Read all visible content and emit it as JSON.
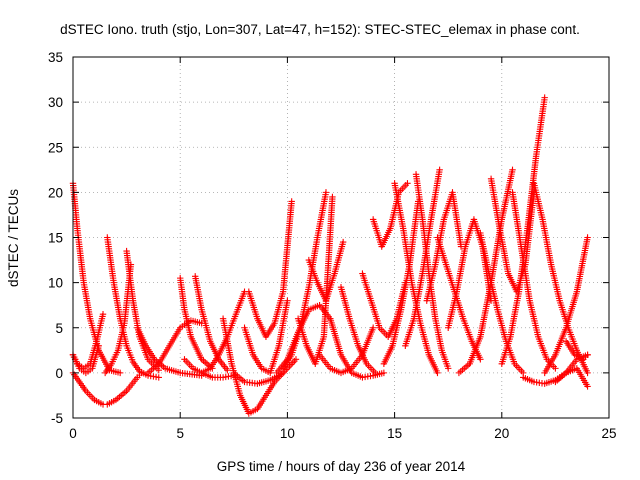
{
  "chart_data": {
    "type": "scatter",
    "title": "dSTEC Iono. truth (stjo, Lon=307, Lat=47, h=152): STEC-STEC_elemax in phase cont.",
    "xlabel": "GPS time / hours of day 236 of year 2014",
    "ylabel": "dSTEC  / TECUs",
    "xlim": [
      0,
      25
    ],
    "ylim": [
      -5,
      35
    ],
    "xticks": [
      0,
      5,
      10,
      15,
      20,
      25
    ],
    "yticks": [
      -5,
      0,
      5,
      10,
      15,
      20,
      25,
      30,
      35
    ],
    "grid": true,
    "marker": "+",
    "colors": {
      "series": "#ff0000",
      "grid": "#a0a0a0",
      "axes": "#000000"
    },
    "series": [
      {
        "x": [
          0.0,
          0.3,
          0.6,
          1.0,
          1.4,
          1.6,
          2.0,
          2.5,
          3.0,
          3.2
        ],
        "values": [
          0.0,
          -1.0,
          -2.0,
          -3.0,
          -3.5,
          -3.5,
          -3.0,
          -2.0,
          -0.5,
          0.0
        ]
      },
      {
        "x": [
          0.0,
          0.2,
          0.5,
          0.8,
          1.2,
          1.7,
          2.2
        ],
        "values": [
          21.0,
          16.0,
          10.0,
          6.0,
          2.5,
          0.3,
          0.0
        ]
      },
      {
        "x": [
          0.0,
          0.2,
          0.5,
          0.8,
          1.1,
          1.4
        ],
        "values": [
          2.0,
          1.0,
          0.5,
          1.0,
          3.5,
          6.5
        ]
      },
      {
        "x": [
          0.0,
          0.3,
          0.6,
          0.9,
          1.2
        ],
        "values": [
          2.0,
          0.5,
          0.0,
          0.5,
          3.0
        ]
      },
      {
        "x": [
          1.6,
          1.9,
          2.2,
          2.5,
          2.8,
          3.1,
          3.5,
          4.0
        ],
        "values": [
          15.0,
          10.0,
          6.0,
          3.0,
          1.2,
          0.2,
          -0.3,
          -0.5
        ]
      },
      {
        "x": [
          1.5,
          1.8,
          2.1,
          2.4,
          2.7
        ],
        "values": [
          0.0,
          1.0,
          2.5,
          5.5,
          12.0
        ]
      },
      {
        "x": [
          2.5,
          2.8,
          3.1,
          3.5,
          4.0
        ],
        "values": [
          13.5,
          8.0,
          4.0,
          1.5,
          0.3
        ]
      },
      {
        "x": [
          3.0,
          3.4,
          3.8,
          4.3,
          5.0,
          6.0
        ],
        "values": [
          5.0,
          3.0,
          1.5,
          0.5,
          0.0,
          -0.3
        ]
      },
      {
        "x": [
          3.5,
          4.0,
          4.5,
          5.0,
          5.5,
          6.0
        ],
        "values": [
          0.0,
          1.0,
          3.0,
          5.0,
          5.8,
          5.5
        ]
      },
      {
        "x": [
          5.0,
          5.2,
          5.5,
          6.0,
          6.5
        ],
        "values": [
          10.5,
          7.0,
          4.0,
          1.5,
          0.5
        ]
      },
      {
        "x": [
          5.2,
          5.6,
          6.0,
          6.5,
          7.0,
          7.5
        ],
        "values": [
          1.5,
          0.5,
          0.0,
          -0.5,
          -0.5,
          -0.3
        ]
      },
      {
        "x": [
          5.7,
          6.0,
          6.4,
          6.8,
          7.2
        ],
        "values": [
          10.7,
          7.0,
          3.5,
          1.5,
          0.3
        ]
      },
      {
        "x": [
          6.0,
          6.4,
          6.8,
          7.2,
          7.6,
          8.0
        ],
        "values": [
          0.0,
          0.5,
          2.0,
          4.0,
          6.5,
          9.0
        ]
      },
      {
        "x": [
          7.0,
          7.4,
          7.8,
          8.2,
          8.6,
          9.0,
          9.4,
          9.8
        ],
        "values": [
          6.0,
          1.0,
          -2.5,
          -4.5,
          -4.0,
          -2.5,
          -1.0,
          0.0
        ]
      },
      {
        "x": [
          8.0,
          8.4,
          8.8,
          9.2,
          9.6,
          10.0
        ],
        "values": [
          5.0,
          2.0,
          0.5,
          0.0,
          3.0,
          8.0
        ]
      },
      {
        "x": [
          8.2,
          8.6,
          9.0,
          9.4,
          9.8,
          10.2
        ],
        "values": [
          9.0,
          6.0,
          4.0,
          5.5,
          9.0,
          19.0
        ]
      },
      {
        "x": [
          7.5,
          8.0,
          8.6,
          9.2,
          9.8,
          10.4
        ],
        "values": [
          0.0,
          -1.0,
          -1.2,
          -0.8,
          0.0,
          1.5
        ]
      },
      {
        "x": [
          9.5,
          10.0,
          10.5,
          11.0,
          11.5,
          12.0
        ],
        "values": [
          0.0,
          1.5,
          4.5,
          7.0,
          7.5,
          6.0
        ]
      },
      {
        "x": [
          9.8,
          10.2,
          10.6,
          11.0,
          11.4,
          11.8
        ],
        "values": [
          0.5,
          2.0,
          5.0,
          9.5,
          15.0,
          20.0
        ]
      },
      {
        "x": [
          10.5,
          10.9,
          11.3,
          11.7,
          12.1
        ],
        "values": [
          6.0,
          3.0,
          1.0,
          4.0,
          19.5
        ]
      },
      {
        "x": [
          11.0,
          11.4,
          11.8,
          12.2,
          12.6
        ],
        "values": [
          12.5,
          10.0,
          8.0,
          11.0,
          14.5
        ]
      },
      {
        "x": [
          11.5,
          12.0,
          12.5,
          13.0,
          13.5,
          14.0
        ],
        "values": [
          2.0,
          0.5,
          0.0,
          0.5,
          2.0,
          5.0
        ]
      },
      {
        "x": [
          12.0,
          12.5,
          13.0,
          13.5,
          14.0,
          14.5
        ],
        "values": [
          6.0,
          2.0,
          0.0,
          -0.5,
          -0.3,
          0.0
        ]
      },
      {
        "x": [
          12.5,
          12.9,
          13.3,
          13.7,
          14.1
        ],
        "values": [
          9.5,
          6.0,
          3.0,
          1.0,
          0.0
        ]
      },
      {
        "x": [
          13.5,
          13.9,
          14.3,
          14.7,
          15.1,
          15.5
        ],
        "values": [
          11.0,
          8.0,
          5.0,
          4.0,
          6.0,
          10.0
        ]
      },
      {
        "x": [
          14.0,
          14.4,
          14.8,
          15.2,
          15.6
        ],
        "values": [
          17.0,
          14.0,
          16.0,
          20.0,
          21.0
        ]
      },
      {
        "x": [
          14.5,
          14.9,
          15.3,
          15.7,
          16.1
        ],
        "values": [
          1.0,
          3.0,
          7.0,
          12.0,
          19.0
        ]
      },
      {
        "x": [
          15.0,
          15.4,
          15.8,
          16.2,
          16.6,
          17.0
        ],
        "values": [
          21.0,
          16.0,
          10.0,
          5.5,
          2.0,
          0.0
        ]
      },
      {
        "x": [
          15.5,
          15.9,
          16.3,
          16.7,
          17.1
        ],
        "values": [
          3.0,
          6.0,
          11.0,
          17.0,
          22.5
        ]
      },
      {
        "x": [
          16.0,
          16.3,
          16.6,
          16.9,
          17.2,
          17.5
        ],
        "values": [
          22.0,
          17.0,
          11.0,
          6.0,
          2.5,
          0.5
        ]
      },
      {
        "x": [
          16.5,
          16.9,
          17.3,
          17.7,
          18.1
        ],
        "values": [
          8.0,
          12.0,
          17.0,
          20.0,
          14.0
        ]
      },
      {
        "x": [
          17.0,
          17.4,
          17.8,
          18.2,
          18.6,
          19.0
        ],
        "values": [
          15.0,
          12.0,
          9.0,
          6.0,
          3.5,
          1.5
        ]
      },
      {
        "x": [
          17.5,
          17.9,
          18.3,
          18.7,
          19.1,
          19.5
        ],
        "values": [
          5.0,
          9.0,
          14.0,
          17.0,
          14.0,
          8.0
        ]
      },
      {
        "x": [
          18.0,
          18.5,
          19.0,
          19.5,
          20.0,
          20.5
        ],
        "values": [
          0.0,
          1.0,
          4.0,
          10.0,
          17.0,
          22.5
        ]
      },
      {
        "x": [
          19.0,
          19.4,
          19.8,
          20.2,
          20.6,
          21.0
        ],
        "values": [
          15.5,
          11.0,
          7.0,
          3.5,
          1.0,
          0.0
        ]
      },
      {
        "x": [
          19.5,
          19.9,
          20.3,
          20.7,
          21.1,
          21.5
        ],
        "values": [
          21.5,
          16.0,
          11.0,
          9.0,
          12.0,
          20.0
        ]
      },
      {
        "x": [
          20.0,
          20.4,
          20.8,
          21.2,
          21.6,
          22.0
        ],
        "values": [
          1.0,
          4.0,
          9.0,
          16.0,
          24.0,
          30.5
        ]
      },
      {
        "x": [
          20.5,
          20.9,
          21.3,
          21.7,
          22.1,
          22.5
        ],
        "values": [
          20.0,
          14.0,
          8.0,
          4.0,
          1.5,
          0.5
        ]
      },
      {
        "x": [
          21.0,
          21.5,
          22.0,
          22.5,
          23.0,
          23.5,
          24.0
        ],
        "values": [
          -0.5,
          -1.0,
          -1.2,
          -0.8,
          0.0,
          1.5,
          2.0
        ]
      },
      {
        "x": [
          21.5,
          21.9,
          22.3,
          22.7,
          23.1,
          23.5,
          24.0
        ],
        "values": [
          21.0,
          17.0,
          12.0,
          8.0,
          5.0,
          2.5,
          0.0
        ]
      },
      {
        "x": [
          22.0,
          22.5,
          23.0,
          23.5,
          24.0
        ],
        "values": [
          0.0,
          2.0,
          5.0,
          9.0,
          15.0
        ]
      },
      {
        "x": [
          22.5,
          23.0,
          23.5,
          24.0
        ],
        "values": [
          -1.0,
          0.0,
          0.5,
          -1.5
        ]
      },
      {
        "x": [
          23.0,
          23.4,
          23.8,
          24.0
        ],
        "values": [
          3.5,
          2.0,
          1.5,
          2.0
        ]
      }
    ]
  }
}
